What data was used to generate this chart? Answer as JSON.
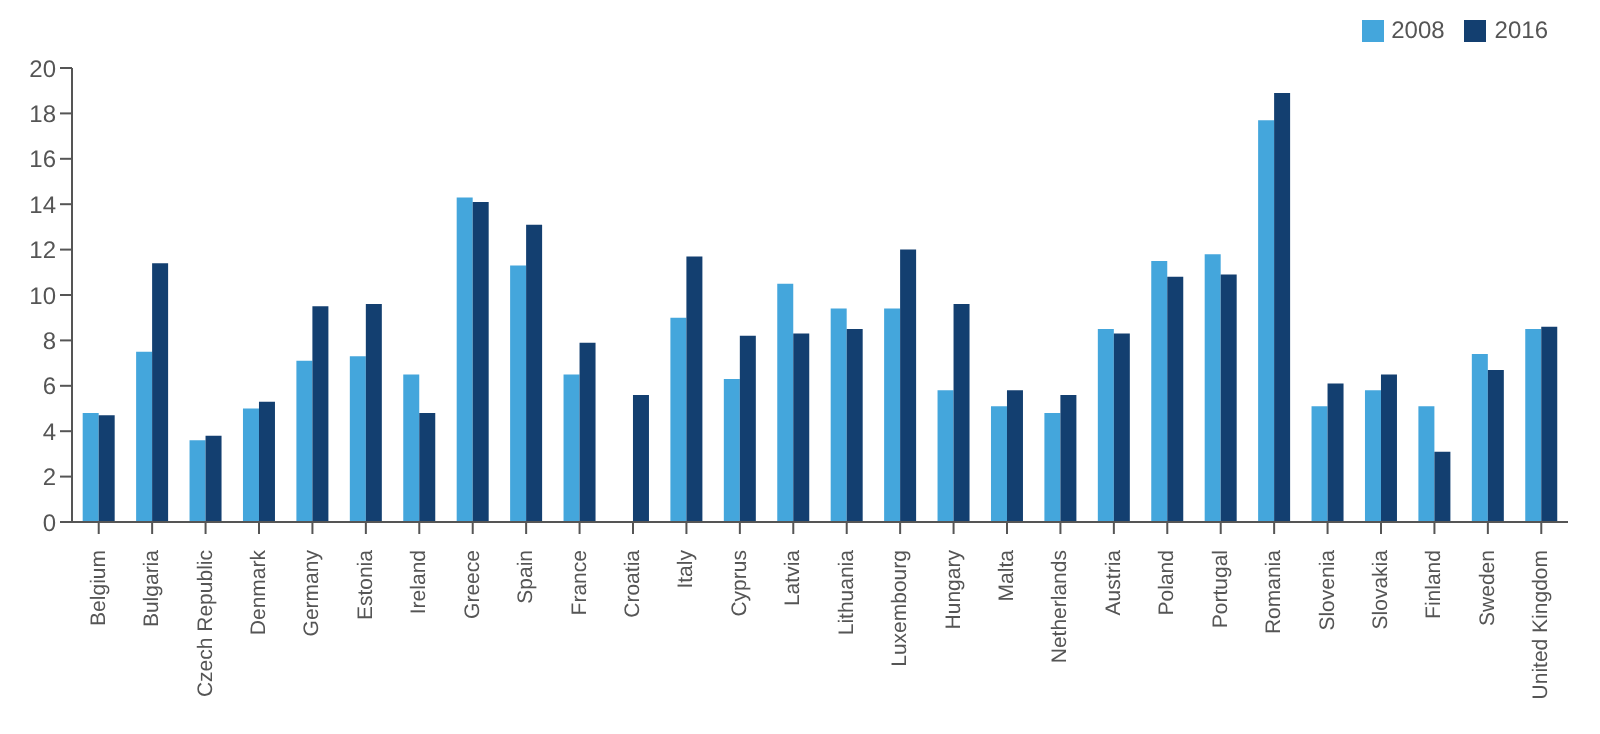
{
  "chart_data": {
    "type": "bar",
    "categories": [
      "Belgium",
      "Bulgaria",
      "Czech Republic",
      "Denmark",
      "Germany",
      "Estonia",
      "Ireland",
      "Greece",
      "Spain",
      "France",
      "Croatia",
      "Italy",
      "Cyprus",
      "Latvia",
      "Lithuania",
      "Luxembourg",
      "Hungary",
      "Malta",
      "Netherlands",
      "Austria",
      "Poland",
      "Portugal",
      "Romania",
      "Slovenia",
      "Slovakia",
      "Finland",
      "Sweden",
      "United Kingdom"
    ],
    "series": [
      {
        "name": "2008",
        "color": "#44a6dc",
        "values": [
          4.8,
          7.5,
          3.6,
          5.0,
          7.1,
          7.3,
          6.5,
          14.3,
          11.3,
          6.5,
          null,
          9.0,
          6.3,
          10.5,
          9.4,
          9.4,
          5.8,
          5.1,
          4.8,
          8.5,
          11.5,
          11.8,
          17.7,
          5.1,
          5.8,
          5.1,
          7.4,
          8.5
        ]
      },
      {
        "name": "2016",
        "color": "#133f70",
        "values": [
          4.7,
          11.4,
          3.8,
          5.3,
          9.5,
          9.6,
          4.8,
          14.1,
          13.1,
          7.9,
          5.6,
          11.7,
          8.2,
          8.3,
          8.5,
          12.0,
          9.6,
          5.8,
          5.6,
          8.3,
          10.8,
          10.9,
          18.9,
          6.1,
          6.5,
          3.1,
          6.7,
          8.6
        ]
      }
    ],
    "ylim": [
      0,
      20
    ],
    "yticks": [
      0,
      2,
      4,
      6,
      8,
      10,
      12,
      14,
      16,
      18,
      20
    ],
    "grid": false,
    "legend": "top right"
  }
}
